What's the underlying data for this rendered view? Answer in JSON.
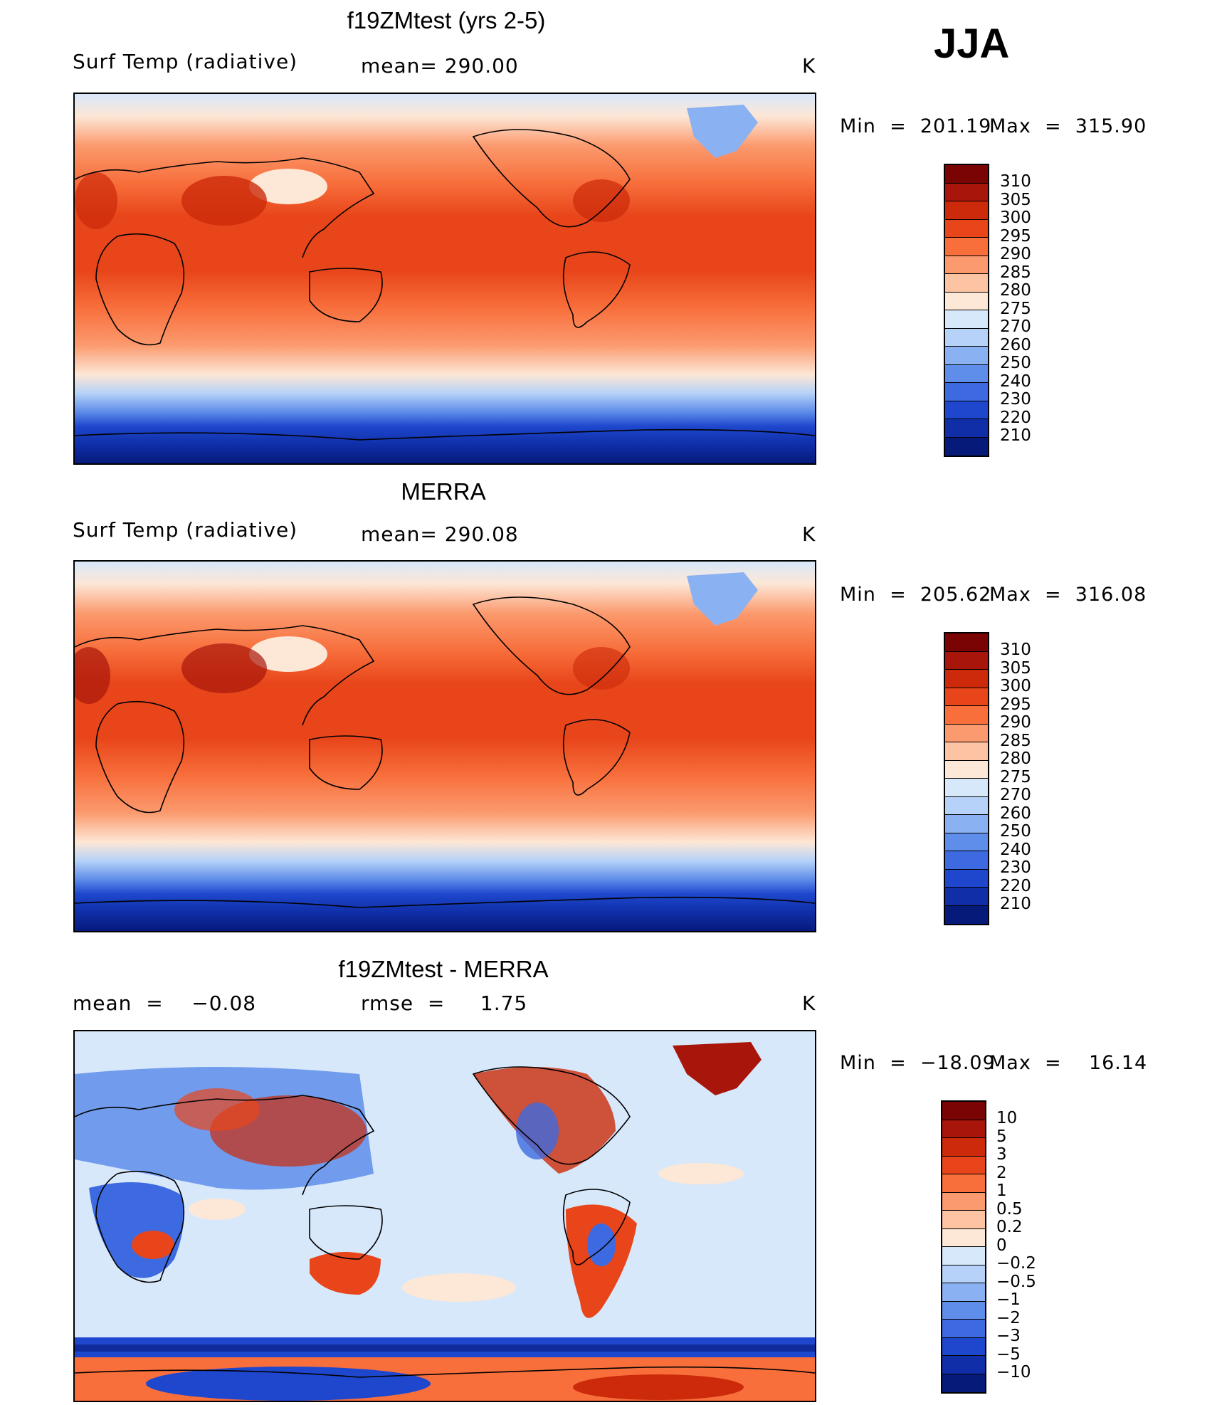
{
  "season": "JJA",
  "panels": [
    {
      "title": "f19ZMtest (yrs 2-5)",
      "left_label": "Surf Temp (radiative)",
      "center_label": "mean= 290.00",
      "units": "K",
      "min_label": "Min  =  201.19",
      "max_label": "Max  =  315.90",
      "map": "model-surface-temperature-map",
      "colorbar": {
        "ticks": [
          "310",
          "305",
          "300",
          "295",
          "290",
          "285",
          "280",
          "275",
          "270",
          "260",
          "250",
          "240",
          "230",
          "220",
          "210"
        ],
        "colors": [
          "#7a0403",
          "#a8150a",
          "#cc2a0a",
          "#e8461a",
          "#f86f3c",
          "#fb9a6e",
          "#fdc4a3",
          "#fde7d6",
          "#d8e8fb",
          "#b6d2f8",
          "#8ab2f2",
          "#5f8eea",
          "#3d6ae0",
          "#1e47cd",
          "#0f2ea8",
          "#061a7a"
        ]
      }
    },
    {
      "title": "MERRA",
      "left_label": "Surf Temp (radiative)",
      "center_label": "mean= 290.08",
      "units": "K",
      "min_label": "Min  =  205.62",
      "max_label": "Max  =  316.08",
      "map": "merra-surface-temperature-map",
      "colorbar": {
        "ticks": [
          "310",
          "305",
          "300",
          "295",
          "290",
          "285",
          "280",
          "275",
          "270",
          "260",
          "250",
          "240",
          "230",
          "220",
          "210"
        ],
        "colors": [
          "#7a0403",
          "#a8150a",
          "#cc2a0a",
          "#e8461a",
          "#f86f3c",
          "#fb9a6e",
          "#fdc4a3",
          "#fde7d6",
          "#d8e8fb",
          "#b6d2f8",
          "#8ab2f2",
          "#5f8eea",
          "#3d6ae0",
          "#1e47cd",
          "#0f2ea8",
          "#061a7a"
        ]
      }
    },
    {
      "title": "f19ZMtest - MERRA",
      "left_label": "mean  =    −0.08",
      "center_label": "rmse  =     1.75",
      "units": "K",
      "min_label": "Min  =  −18.09",
      "max_label": "Max  =    16.14",
      "map": "difference-map",
      "colorbar": {
        "ticks": [
          "10",
          "5",
          "3",
          "2",
          "1",
          "0.5",
          "0.2",
          "0",
          "−0.2",
          "−0.5",
          "−1",
          "−2",
          "−3",
          "−5",
          "−10"
        ],
        "colors": [
          "#7a0403",
          "#a8150a",
          "#cc2a0a",
          "#e8461a",
          "#f86f3c",
          "#fb9a6e",
          "#fdc4a3",
          "#fde7d6",
          "#d8e8fb",
          "#b6d2f8",
          "#8ab2f2",
          "#5f8eea",
          "#3d6ae0",
          "#1e47cd",
          "#0f2ea8",
          "#061a7a"
        ]
      }
    }
  ]
}
